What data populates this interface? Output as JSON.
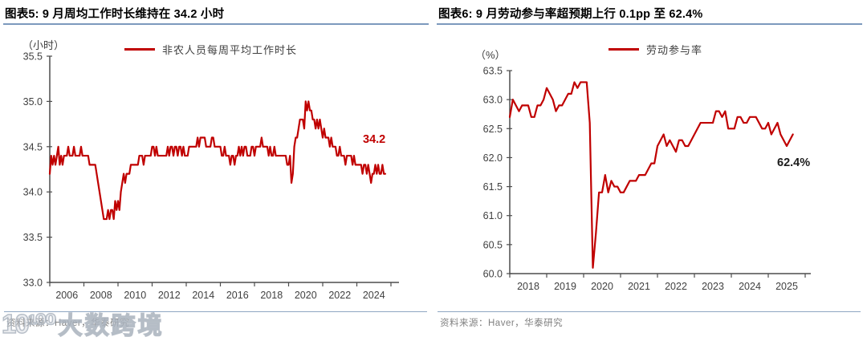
{
  "style": {
    "accent_red": "#C00000",
    "accent_blue": "#7C99BD",
    "source_rule_blue": "#8FA6C2",
    "axis_color": "#4D4D4D",
    "tick_label_color": "#404040",
    "source_text_color": "#808080",
    "annotation_black": "#1A1A1A"
  },
  "panels": [
    {
      "title": "图表5:  9 月周均工作时长维持在 34.2 小时",
      "unit_label": "（小时）",
      "legend": "非农人员每周平均工作时长",
      "annotation": "34.2",
      "source": "资料来源：Haver，华泰研究"
    },
    {
      "title": "图表6:  9 月劳动参与率超预期上行 0.1pp 至 62.4%",
      "unit_label": "（%）",
      "legend": "劳动参与率",
      "annotation": "62.4%",
      "source": "资料来源：Haver，华泰研究"
    }
  ],
  "watermark": {
    "logo": "10¹⁰⁰",
    "text": "大数跨境"
  },
  "chart_data": [
    {
      "type": "line",
      "title": "9 月周均工作时长维持在 34.2 小时",
      "ylabel": "（小时）",
      "ylim": [
        33.0,
        35.5
      ],
      "yticks": [
        "33.0",
        "33.5",
        "34.0",
        "34.5",
        "35.0",
        "35.5"
      ],
      "xticks": [
        "2006",
        "2008",
        "2010",
        "2012",
        "2014",
        "2016",
        "2018",
        "2020",
        "2022",
        "2024"
      ],
      "x_range": [
        "2006-01",
        "2025-09"
      ],
      "grid": false,
      "legend_position": "top",
      "annotation": {
        "text": "34.2",
        "color": "#C00000"
      },
      "series": [
        {
          "name": "非农人员每周平均工作时长",
          "color": "#C00000",
          "freq": "monthly",
          "values": [
            34.2,
            34.4,
            34.3,
            34.4,
            34.3,
            34.4,
            34.5,
            34.3,
            34.4,
            34.3,
            34.4,
            34.4,
            34.4,
            34.5,
            34.4,
            34.4,
            34.4,
            34.5,
            34.4,
            34.4,
            34.4,
            34.4,
            34.5,
            34.4,
            34.4,
            34.4,
            34.4,
            34.4,
            34.3,
            34.3,
            34.3,
            34.3,
            34.3,
            34.2,
            34.1,
            34.0,
            33.9,
            33.8,
            33.7,
            33.7,
            33.7,
            33.8,
            33.7,
            33.8,
            33.8,
            33.7,
            33.9,
            33.8,
            33.9,
            33.8,
            34.0,
            34.1,
            34.2,
            34.1,
            34.2,
            34.2,
            34.2,
            34.3,
            34.3,
            34.3,
            34.3,
            34.3,
            34.3,
            34.4,
            34.4,
            34.4,
            34.3,
            34.4,
            34.4,
            34.4,
            34.4,
            34.4,
            34.5,
            34.5,
            34.4,
            34.5,
            34.4,
            34.4,
            34.4,
            34.4,
            34.4,
            34.4,
            34.4,
            34.5,
            34.4,
            34.5,
            34.5,
            34.4,
            34.5,
            34.5,
            34.4,
            34.5,
            34.5,
            34.4,
            34.5,
            34.4,
            34.4,
            34.4,
            34.5,
            34.5,
            34.5,
            34.5,
            34.5,
            34.5,
            34.6,
            34.5,
            34.6,
            34.6,
            34.6,
            34.6,
            34.5,
            34.5,
            34.5,
            34.5,
            34.6,
            34.6,
            34.5,
            34.5,
            34.5,
            34.5,
            34.5,
            34.4,
            34.4,
            34.5,
            34.4,
            34.4,
            34.4,
            34.3,
            34.4,
            34.4,
            34.3,
            34.4,
            34.4,
            34.5,
            34.4,
            34.5,
            34.4,
            34.5,
            34.5,
            34.4,
            34.4,
            34.4,
            34.5,
            34.5,
            34.4,
            34.5,
            34.5,
            34.5,
            34.5,
            34.6,
            34.5,
            34.5,
            34.5,
            34.5,
            34.4,
            34.5,
            34.4,
            34.4,
            34.5,
            34.4,
            34.4,
            34.4,
            34.4,
            34.4,
            34.4,
            34.4,
            34.4,
            34.3,
            34.3,
            34.4,
            34.1,
            34.2,
            34.5,
            34.6,
            34.6,
            34.7,
            34.8,
            34.8,
            34.8,
            34.7,
            35.0,
            34.9,
            35.0,
            34.9,
            34.9,
            34.8,
            34.8,
            34.7,
            34.8,
            34.7,
            34.8,
            34.7,
            34.6,
            34.7,
            34.6,
            34.6,
            34.6,
            34.5,
            34.6,
            34.5,
            34.5,
            34.5,
            34.4,
            34.4,
            34.5,
            34.4,
            34.4,
            34.4,
            34.3,
            34.4,
            34.4,
            34.4,
            34.4,
            34.3,
            34.4,
            34.3,
            34.3,
            34.3,
            34.3,
            34.3,
            34.2,
            34.3,
            34.3,
            34.2,
            34.3,
            34.2,
            34.1,
            34.2,
            34.2,
            34.3,
            34.2,
            34.3,
            34.2,
            34.2,
            34.3,
            34.2,
            34.2
          ]
        }
      ]
    },
    {
      "type": "line",
      "title": "9 月劳动参与率超预期上行 0.1pp 至 62.4%",
      "ylabel": "（%）",
      "ylim": [
        60.0,
        63.5
      ],
      "yticks": [
        "60.0",
        "60.5",
        "61.0",
        "61.5",
        "62.0",
        "62.5",
        "63.0",
        "63.5"
      ],
      "xticks": [
        "2018",
        "2019",
        "2020",
        "2021",
        "2022",
        "2023",
        "2024",
        "2025"
      ],
      "x_range": [
        "2018-01",
        "2025-09"
      ],
      "grid": false,
      "legend_position": "top",
      "annotation": {
        "text": "62.4%",
        "color": "#1A1A1A"
      },
      "series": [
        {
          "name": "劳动参与率",
          "color": "#C00000",
          "freq": "monthly",
          "values": [
            62.7,
            63.0,
            62.9,
            62.8,
            62.9,
            62.9,
            62.9,
            62.7,
            62.7,
            62.9,
            62.9,
            63.0,
            63.2,
            63.1,
            63.0,
            62.8,
            62.9,
            62.9,
            63.0,
            63.1,
            63.1,
            63.3,
            63.2,
            63.3,
            63.3,
            63.3,
            62.6,
            60.1,
            60.7,
            61.4,
            61.4,
            61.7,
            61.4,
            61.6,
            61.5,
            61.5,
            61.4,
            61.4,
            61.5,
            61.6,
            61.6,
            61.6,
            61.7,
            61.7,
            61.7,
            61.8,
            61.9,
            61.9,
            62.2,
            62.3,
            62.4,
            62.2,
            62.3,
            62.2,
            62.1,
            62.3,
            62.3,
            62.2,
            62.2,
            62.3,
            62.4,
            62.5,
            62.6,
            62.6,
            62.6,
            62.6,
            62.6,
            62.8,
            62.8,
            62.7,
            62.8,
            62.5,
            62.5,
            62.5,
            62.7,
            62.7,
            62.6,
            62.6,
            62.7,
            62.7,
            62.7,
            62.6,
            62.5,
            62.5,
            62.6,
            62.4,
            62.5,
            62.6,
            62.4,
            62.3,
            62.2,
            62.3,
            62.4
          ]
        }
      ]
    }
  ]
}
